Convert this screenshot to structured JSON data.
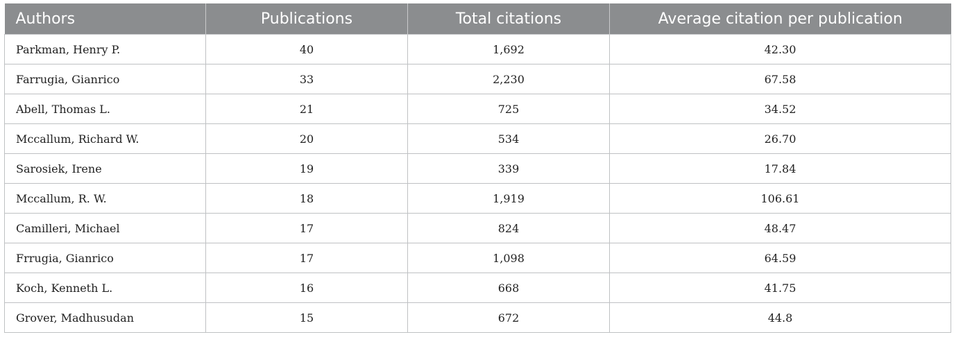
{
  "table": {
    "headers": [
      "Authors",
      "Publications",
      "Total citations",
      "Average citation per publication"
    ],
    "rows": [
      [
        "Parkman, Henry P.",
        "40",
        "1,692",
        "42.30"
      ],
      [
        "Farrugia, Gianrico",
        "33",
        "2,230",
        "67.58"
      ],
      [
        "Abell, Thomas L.",
        "21",
        "725",
        "34.52"
      ],
      [
        "Mccallum, Richard W.",
        "20",
        "534",
        "26.70"
      ],
      [
        "Sarosiek, Irene",
        "19",
        "339",
        "17.84"
      ],
      [
        "Mccallum, R. W.",
        "18",
        "1,919",
        "106.61"
      ],
      [
        "Camilleri, Michael",
        "17",
        "824",
        "48.47"
      ],
      [
        "Frrugia, Gianrico",
        "17",
        "1,098",
        "64.59"
      ],
      [
        "Koch, Kenneth L.",
        "16",
        "668",
        "41.75"
      ],
      [
        "Grover, Madhusudan",
        "15",
        "672",
        "44.8"
      ]
    ]
  }
}
